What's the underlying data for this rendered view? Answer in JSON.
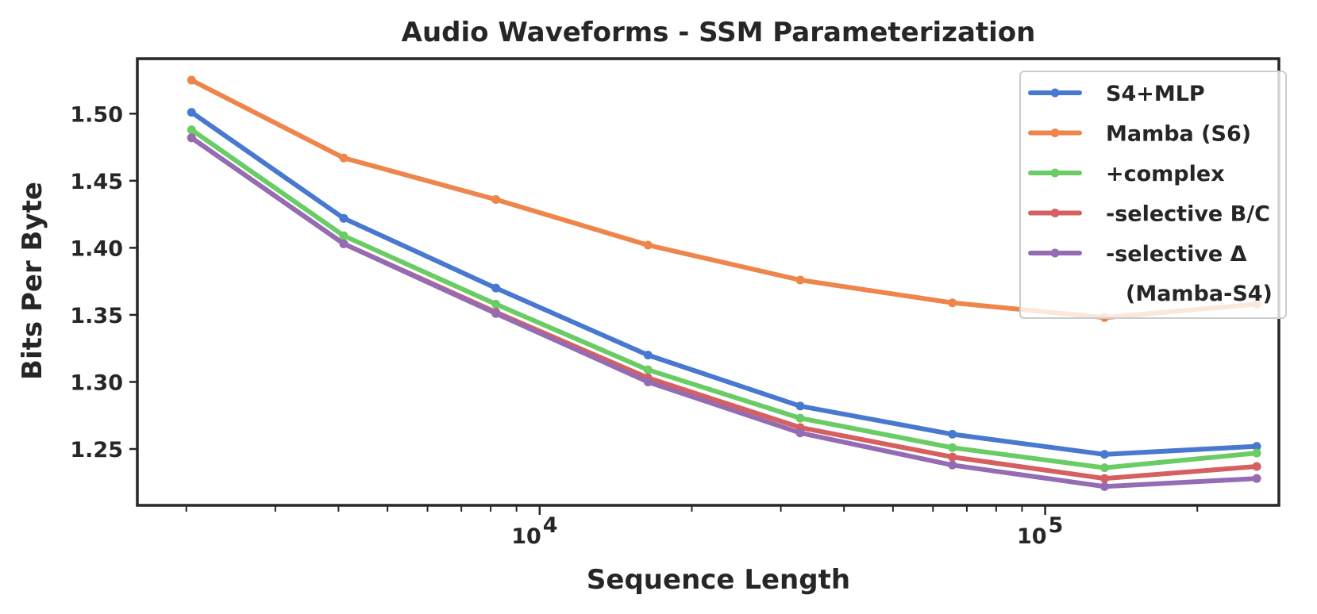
{
  "chart_data": {
    "type": "line",
    "title": "Audio Waveforms - SSM Parameterization",
    "xlabel": "Sequence Length",
    "ylabel": "Bits Per Byte",
    "xscale": "log",
    "xlim": [
      1600,
      290000
    ],
    "ylim": [
      1.208,
      1.541
    ],
    "x_tick_labels": [
      {
        "value": 10000,
        "base": "10",
        "exp": "4"
      },
      {
        "value": 100000,
        "base": "10",
        "exp": "5"
      }
    ],
    "y_ticks": [
      1.25,
      1.3,
      1.35,
      1.4,
      1.45,
      1.5
    ],
    "y_tick_labels": [
      "1.25",
      "1.30",
      "1.35",
      "1.40",
      "1.45",
      "1.50"
    ],
    "grid": false,
    "legend_position": "top-right",
    "x": [
      2048,
      4096,
      8192,
      16384,
      32768,
      65536,
      131072,
      262144
    ],
    "series": [
      {
        "name": "S4+MLP",
        "color": "#4878d0",
        "values": [
          1.501,
          1.422,
          1.37,
          1.32,
          1.282,
          1.261,
          1.246,
          1.252
        ]
      },
      {
        "name": "Mamba (S6)",
        "color": "#ee854a",
        "values": [
          1.525,
          1.467,
          1.436,
          1.402,
          1.376,
          1.359,
          1.348,
          1.358
        ]
      },
      {
        "name": "+complex",
        "color": "#6acc64",
        "values": [
          1.488,
          1.409,
          1.358,
          1.309,
          1.273,
          1.251,
          1.236,
          1.247
        ]
      },
      {
        "name": "-selective B/C",
        "color": "#d65f5f",
        "values": [
          1.482,
          1.403,
          1.352,
          1.303,
          1.266,
          1.244,
          1.228,
          1.237
        ]
      },
      {
        "name": "-selective Δ",
        "name_line2": "(Mamba-S4)",
        "color": "#956cb4",
        "values": [
          1.482,
          1.403,
          1.351,
          1.3,
          1.262,
          1.238,
          1.222,
          1.228
        ]
      }
    ]
  }
}
